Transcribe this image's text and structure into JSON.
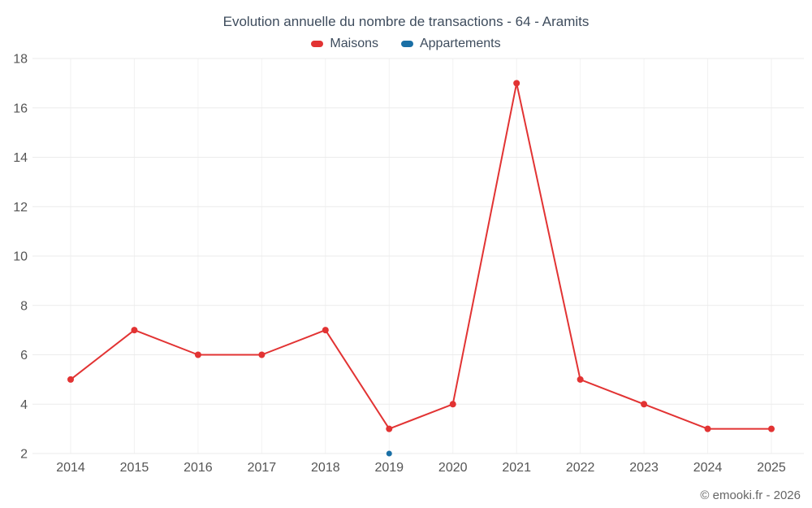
{
  "chart_data": {
    "type": "line",
    "title": "Evolution annuelle du nombre de transactions - 64 - Aramits",
    "categories": [
      "2014",
      "2015",
      "2016",
      "2017",
      "2018",
      "2019",
      "2020",
      "2021",
      "2022",
      "2023",
      "2024",
      "2025"
    ],
    "series": [
      {
        "name": "Maisons",
        "color": "#e23333",
        "values": [
          5,
          7,
          6,
          6,
          7,
          3,
          4,
          17,
          5,
          4,
          3,
          3
        ]
      },
      {
        "name": "Appartements",
        "color": "#1a6fa5",
        "values": [
          null,
          null,
          null,
          null,
          null,
          2,
          null,
          null,
          null,
          null,
          null,
          null
        ]
      }
    ],
    "xlabel": "",
    "ylabel": "",
    "ylim": [
      2,
      18
    ],
    "ytick_step": 2,
    "grid": true,
    "legend_position": "top"
  },
  "axis": {
    "label_color": "#555555",
    "grid_color": "#ebebeb",
    "vgrid_color": "#f2f2f2"
  },
  "footer": {
    "copyright": "© emooki.fr - 2026"
  }
}
